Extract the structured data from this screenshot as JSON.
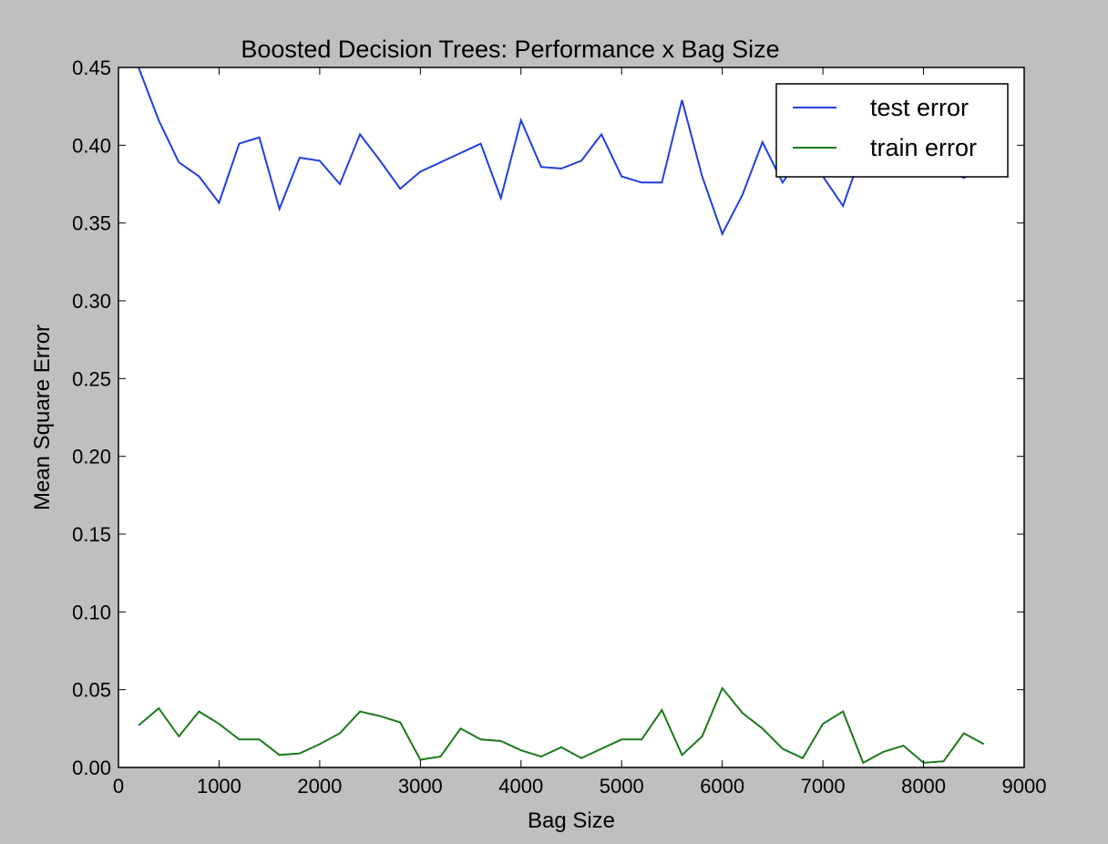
{
  "chart_data": {
    "type": "line",
    "title": "Boosted Decision Trees: Performance x Bag Size",
    "xlabel": "Bag Size",
    "ylabel": "Mean Square Error",
    "xlim": [
      0,
      9000
    ],
    "ylim": [
      0.0,
      0.45
    ],
    "xticks": [
      0,
      1000,
      2000,
      3000,
      4000,
      5000,
      6000,
      7000,
      8000,
      9000
    ],
    "yticks": [
      0.0,
      0.05,
      0.1,
      0.15,
      0.2,
      0.25,
      0.3,
      0.35,
      0.4,
      0.45
    ],
    "xtick_labels": [
      "0",
      "1000",
      "2000",
      "3000",
      "4000",
      "5000",
      "6000",
      "7000",
      "8000",
      "9000"
    ],
    "ytick_labels": [
      "0.00",
      "0.05",
      "0.10",
      "0.15",
      "0.20",
      "0.25",
      "0.30",
      "0.35",
      "0.40",
      "0.45"
    ],
    "grid": false,
    "legend_position": "top-right",
    "x": [
      200,
      400,
      600,
      800,
      1000,
      1200,
      1400,
      1600,
      1800,
      2000,
      2200,
      2400,
      2600,
      2800,
      3000,
      3200,
      3400,
      3600,
      3800,
      4000,
      4200,
      4400,
      4600,
      4800,
      5000,
      5200,
      5400,
      5600,
      5800,
      6000,
      6200,
      6400,
      6600,
      6800,
      7000,
      7200,
      7400,
      7600,
      7800,
      8000,
      8200,
      8400,
      8600
    ],
    "series": [
      {
        "name": "test error",
        "color": "#1f3fe0",
        "values": [
          0.45,
          0.416,
          0.389,
          0.38,
          0.363,
          0.401,
          0.405,
          0.359,
          0.392,
          0.39,
          0.375,
          0.407,
          0.39,
          0.372,
          0.383,
          0.389,
          0.395,
          0.401,
          0.366,
          0.416,
          0.386,
          0.385,
          0.39,
          0.407,
          0.38,
          0.376,
          0.376,
          0.429,
          0.38,
          0.343,
          0.368,
          0.402,
          0.376,
          0.395,
          0.38,
          0.361,
          0.398,
          0.392,
          0.395,
          0.39,
          0.385,
          0.379,
          0.385
        ]
      },
      {
        "name": "train error",
        "color": "#1a7a1a",
        "values": [
          0.027,
          0.038,
          0.02,
          0.036,
          0.028,
          0.018,
          0.018,
          0.008,
          0.009,
          0.015,
          0.022,
          0.036,
          0.033,
          0.029,
          0.005,
          0.007,
          0.025,
          0.018,
          0.017,
          0.011,
          0.007,
          0.013,
          0.006,
          0.012,
          0.018,
          0.018,
          0.037,
          0.008,
          0.02,
          0.051,
          0.035,
          0.025,
          0.012,
          0.006,
          0.028,
          0.036,
          0.003,
          0.01,
          0.014,
          0.003,
          0.004,
          0.022,
          0.015
        ]
      }
    ]
  }
}
